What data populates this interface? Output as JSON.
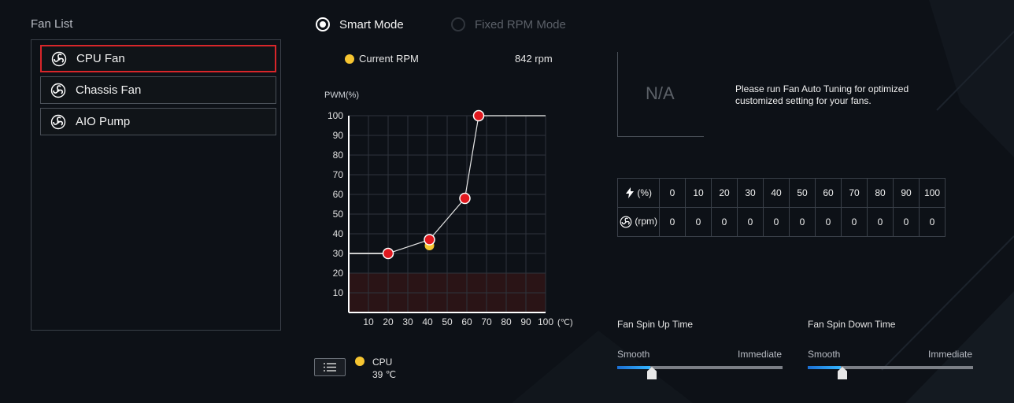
{
  "fan_list": {
    "title": "Fan List",
    "items": [
      {
        "label": "CPU Fan",
        "selected": true
      },
      {
        "label": "Chassis Fan",
        "selected": false
      },
      {
        "label": "AIO Pump",
        "selected": false
      }
    ]
  },
  "modes": {
    "smart": {
      "label": "Smart Mode",
      "selected": true
    },
    "fixed": {
      "label": "Fixed RPM Mode",
      "selected": false
    }
  },
  "current_rpm": {
    "label": "Current RPM",
    "value": "842 rpm"
  },
  "sensor": {
    "label": "CPU",
    "temp": "39 ℃"
  },
  "tuning": {
    "na": "N/A",
    "message_line1": "Please run Fan Auto Tuning for optimized",
    "message_line2": "customized setting for your fans."
  },
  "rpm_table": {
    "pct_unit": "(%)",
    "rpm_unit": "(rpm)",
    "percents": [
      "0",
      "10",
      "20",
      "30",
      "40",
      "50",
      "60",
      "70",
      "80",
      "90",
      "100"
    ],
    "rpms": [
      "0",
      "0",
      "0",
      "0",
      "0",
      "0",
      "0",
      "0",
      "0",
      "0",
      "0"
    ]
  },
  "spin_up": {
    "title": "Fan Spin Up Time",
    "left": "Smooth",
    "right": "Immediate",
    "level": 0.2
  },
  "spin_down": {
    "title": "Fan Spin Down Time",
    "left": "Smooth",
    "right": "Immediate",
    "level": 0.2
  },
  "colors": {
    "accent": "#d8262a",
    "point": "#e1181e",
    "current": "#f6c531",
    "slider": "#34b5ff"
  },
  "chart_data": {
    "type": "line",
    "ylabel": "PWM(%)",
    "xlabel": "",
    "x_unit": "(℃)",
    "xlim": [
      0,
      100
    ],
    "ylim": [
      0,
      100
    ],
    "x_ticks": [
      10,
      20,
      30,
      40,
      50,
      60,
      70,
      80,
      90,
      100
    ],
    "y_ticks": [
      10,
      20,
      30,
      40,
      50,
      60,
      70,
      80,
      90,
      100
    ],
    "danger_zone_max": 20,
    "curve_points": [
      {
        "x": 20,
        "y": 30
      },
      {
        "x": 41,
        "y": 37
      },
      {
        "x": 59,
        "y": 58
      },
      {
        "x": 66,
        "y": 100
      }
    ],
    "current_point": {
      "x": 41,
      "y": 34
    }
  }
}
